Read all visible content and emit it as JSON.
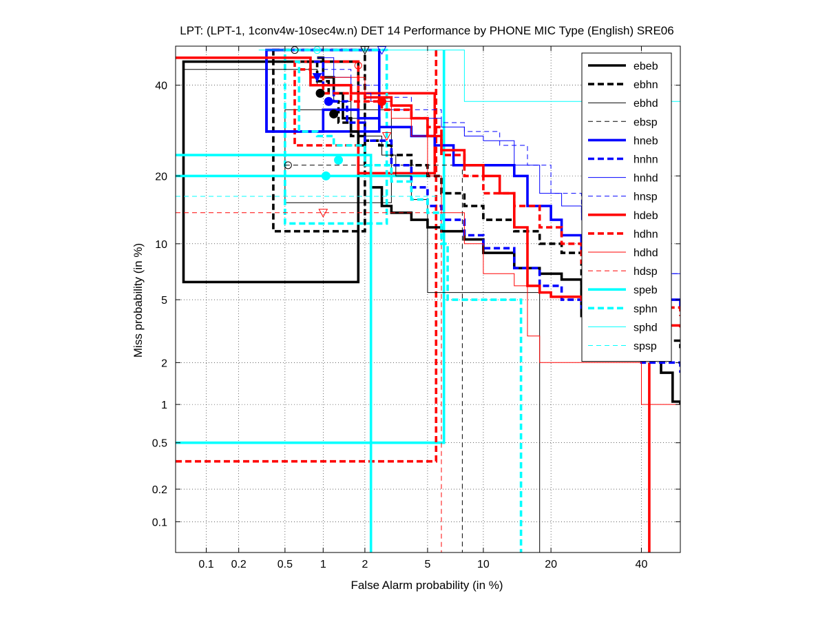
{
  "chart_data": {
    "type": "line",
    "title": "LPT: (LPT-1, 1conv4w-10sec4w.n) DET 14 Performance by PHONE MIC Type (English) SRE06",
    "xlabel": "False Alarm probability (in %)",
    "ylabel": "Miss probability (in %)",
    "scale": "normal-deviate (probit) on both axes",
    "xlim": [
      0.05,
      50
    ],
    "ylim": [
      0.05,
      50
    ],
    "grid": "dotted",
    "legend_position": "top-right",
    "x_ticks": [
      "0.1",
      "0.2",
      "0.5",
      "1",
      "2",
      "5",
      "10",
      "20",
      "40"
    ],
    "x_tick_values": [
      0.1,
      0.2,
      0.5,
      1,
      2,
      5,
      10,
      20,
      40
    ],
    "y_ticks": [
      "0.1",
      "0.2",
      "0.5",
      "1",
      "2",
      "5",
      "10",
      "20",
      "40"
    ],
    "y_tick_values": [
      0.1,
      0.2,
      0.5,
      1,
      2,
      5,
      10,
      20,
      40
    ],
    "series": [
      {
        "name": "ebeb",
        "color": "#000000",
        "style": "solid",
        "weight": "thick",
        "points": [
          [
            0.9,
            47
          ],
          [
            1.0,
            42
          ],
          [
            1.2,
            38
          ],
          [
            1.4,
            32
          ],
          [
            1.6,
            29
          ],
          [
            1.8,
            26
          ],
          [
            2.0,
            22
          ],
          [
            2.2,
            18
          ],
          [
            2.6,
            15
          ],
          [
            3.0,
            14
          ],
          [
            4.0,
            13
          ],
          [
            5.0,
            12
          ],
          [
            6.0,
            11.5
          ],
          [
            8.0,
            10.5
          ],
          [
            10,
            9
          ],
          [
            14,
            7.5
          ],
          [
            18,
            7
          ],
          [
            22,
            6.5
          ],
          [
            26,
            4
          ],
          [
            30,
            3
          ],
          [
            40,
            2.4
          ],
          [
            45,
            1.7
          ],
          [
            48,
            1.05
          ],
          [
            50,
            1.0
          ]
        ],
        "ci": {
          "xlo": 0.06,
          "xhi": 1.8,
          "ylo": 6.3,
          "yhi": 46
        }
      },
      {
        "name": "ebhn",
        "color": "#000000",
        "style": "dashed",
        "weight": "thick",
        "points": [
          [
            0.75,
            46
          ],
          [
            0.9,
            41
          ],
          [
            1.1,
            36
          ],
          [
            1.3,
            31
          ],
          [
            1.6,
            28
          ],
          [
            2.0,
            27
          ],
          [
            2.5,
            26
          ],
          [
            3.0,
            24
          ],
          [
            4.0,
            22
          ],
          [
            5.0,
            20
          ],
          [
            6.0,
            17
          ],
          [
            8.0,
            15
          ],
          [
            10,
            13
          ],
          [
            14,
            11.5
          ],
          [
            18,
            10
          ],
          [
            22,
            9
          ],
          [
            26,
            4.5
          ],
          [
            30,
            3.5
          ],
          [
            40,
            2.8
          ],
          [
            50,
            2.5
          ]
        ],
        "ci": {
          "xlo": 0.4,
          "xhi": 2.0,
          "ylo": 11.5,
          "yhi": 49
        }
      },
      {
        "name": "ebhd",
        "color": "#000000",
        "style": "solid",
        "weight": "thin",
        "points": [
          [
            0.06,
            44
          ],
          [
            0.5,
            44
          ],
          [
            0.9,
            40
          ],
          [
            1.2,
            36
          ],
          [
            1.6,
            32
          ],
          [
            2.0,
            28
          ],
          [
            2.6,
            24
          ],
          [
            3.2,
            20
          ],
          [
            4.0,
            16
          ],
          [
            5.0,
            5.5
          ],
          [
            8.0,
            5.5
          ],
          [
            18,
            5.5
          ],
          [
            18,
            0.05
          ]
        ],
        "ci": {
          "xlo": 0.5,
          "xhi": 3.0,
          "ylo": 15.5,
          "yhi": 34
        }
      },
      {
        "name": "ebsp",
        "color": "#000000",
        "style": "dashed",
        "weight": "thin",
        "points": [
          [
            0.5,
            22
          ],
          [
            1.0,
            22
          ],
          [
            2.0,
            22
          ],
          [
            3.0,
            22
          ],
          [
            6.0,
            22
          ],
          [
            7.8,
            22
          ],
          [
            7.8,
            0.05
          ]
        ]
      },
      {
        "name": "hneb",
        "color": "#0000ff",
        "style": "solid",
        "weight": "thick",
        "points": [
          [
            0.35,
            47
          ],
          [
            0.35,
            29
          ],
          [
            0.9,
            29
          ],
          [
            1.0,
            34
          ],
          [
            1.4,
            34
          ],
          [
            1.8,
            32
          ],
          [
            2.5,
            30
          ],
          [
            4.0,
            28
          ],
          [
            5.5,
            26
          ],
          [
            7.0,
            22
          ],
          [
            10,
            22
          ],
          [
            14,
            20
          ],
          [
            16,
            15
          ],
          [
            20,
            13
          ],
          [
            22,
            11
          ],
          [
            26,
            9
          ],
          [
            30,
            8.5
          ],
          [
            40,
            5
          ],
          [
            50,
            4.5
          ]
        ],
        "ci": {
          "xlo": 0.35,
          "xhi": 2.5,
          "ylo": 29,
          "yhi": 49
        }
      },
      {
        "name": "hnhn",
        "color": "#0000ff",
        "style": "dashed",
        "weight": "thick",
        "points": [
          [
            0.85,
            46
          ],
          [
            1.0,
            40
          ],
          [
            1.2,
            36
          ],
          [
            1.5,
            31
          ],
          [
            2.0,
            27
          ],
          [
            3.0,
            22
          ],
          [
            4.0,
            18
          ],
          [
            5.0,
            15
          ],
          [
            6.0,
            13
          ],
          [
            8.0,
            11
          ],
          [
            10,
            9.5
          ],
          [
            14,
            7.5
          ],
          [
            18,
            6
          ],
          [
            22,
            5
          ],
          [
            26,
            4.5
          ],
          [
            30,
            3.5
          ],
          [
            40,
            2.0
          ],
          [
            50,
            1.7
          ]
        ]
      },
      {
        "name": "hnhd",
        "color": "#0000ff",
        "style": "solid",
        "weight": "thin",
        "points": [
          [
            0.9,
            47
          ],
          [
            1.2,
            42
          ],
          [
            1.6,
            38
          ],
          [
            2.2,
            36
          ],
          [
            3.0,
            34
          ],
          [
            4.0,
            32
          ],
          [
            6.0,
            30
          ],
          [
            8.0,
            28
          ],
          [
            10,
            27
          ],
          [
            14,
            22
          ],
          [
            18,
            17
          ],
          [
            22,
            15
          ],
          [
            26,
            13
          ],
          [
            30,
            11
          ],
          [
            40,
            7
          ],
          [
            50,
            6
          ]
        ]
      },
      {
        "name": "hnsp",
        "color": "#0000ff",
        "style": "dashed",
        "weight": "thin",
        "points": [
          [
            1.0,
            44
          ],
          [
            1.6,
            40
          ],
          [
            2.5,
            37
          ],
          [
            4.0,
            34
          ],
          [
            6.0,
            31
          ],
          [
            8.0,
            29
          ],
          [
            12,
            26
          ],
          [
            16,
            22
          ],
          [
            20,
            17
          ],
          [
            26,
            14
          ],
          [
            34,
            10
          ],
          [
            40,
            7
          ],
          [
            50,
            6
          ]
        ]
      },
      {
        "name": "hdeb",
        "color": "#ff0000",
        "style": "solid",
        "weight": "thick",
        "points": [
          [
            0.05,
            47
          ],
          [
            0.8,
            47
          ],
          [
            0.8,
            40
          ],
          [
            1.2,
            40
          ],
          [
            1.6,
            38
          ],
          [
            2.0,
            37
          ],
          [
            3.0,
            35
          ],
          [
            4.0,
            32
          ],
          [
            5.0,
            28
          ],
          [
            6.0,
            25
          ],
          [
            8.0,
            22
          ],
          [
            10,
            20
          ],
          [
            12,
            17
          ],
          [
            14,
            12
          ],
          [
            16,
            6
          ],
          [
            18,
            5.5
          ],
          [
            20,
            5.2
          ],
          [
            26,
            5
          ],
          [
            30,
            4
          ],
          [
            40,
            3.5
          ],
          [
            50,
            3.4
          ]
        ],
        "ci": {
          "xlo": 1.8,
          "xhi": 5.5,
          "ylo": 20.5,
          "yhi": 38
        }
      },
      {
        "name": "hdhn",
        "color": "#ff0000",
        "style": "dashed",
        "weight": "thick",
        "points": [
          [
            0.65,
            44
          ],
          [
            0.8,
            42
          ],
          [
            1.0,
            38
          ],
          [
            1.6,
            36
          ],
          [
            2.6,
            34
          ],
          [
            4.0,
            32
          ],
          [
            5.0,
            30
          ],
          [
            6.0,
            24
          ],
          [
            8.0,
            20
          ],
          [
            10,
            17
          ],
          [
            14,
            15
          ],
          [
            18,
            12
          ],
          [
            22,
            10
          ],
          [
            26,
            8
          ],
          [
            34,
            6
          ],
          [
            40,
            4.5
          ],
          [
            50,
            4.0
          ]
        ],
        "ci": {
          "xlo": 0.6,
          "xhi": 1.8,
          "ylo": 26,
          "yhi": 46
        }
      },
      {
        "name": "hdhd",
        "color": "#ff0000",
        "style": "solid",
        "weight": "thin",
        "points": [
          [
            1.0,
            42
          ],
          [
            2.0,
            36
          ],
          [
            3.0,
            32
          ],
          [
            4.0,
            28
          ],
          [
            5.0,
            20
          ],
          [
            6.0,
            14
          ],
          [
            8.0,
            10
          ],
          [
            10,
            7
          ],
          [
            14,
            6
          ],
          [
            16,
            3
          ],
          [
            18,
            2.0
          ],
          [
            30,
            2.0
          ],
          [
            40,
            1.0
          ],
          [
            50,
            1.0
          ]
        ]
      },
      {
        "name": "hdsp",
        "color": "#ff0000",
        "style": "dashed",
        "weight": "thin",
        "points": [
          [
            0.05,
            14
          ],
          [
            1.0,
            14
          ],
          [
            2.0,
            14
          ],
          [
            4.0,
            14
          ],
          [
            6.0,
            14
          ],
          [
            6.0,
            0.05
          ]
        ]
      },
      {
        "name": "speb",
        "color": "#00ffff",
        "style": "solid",
        "weight": "thick",
        "points": [
          [
            0.05,
            24
          ],
          [
            1.0,
            24
          ],
          [
            2.0,
            24
          ],
          [
            2.2,
            24
          ],
          [
            2.2,
            0.05
          ]
        ]
      },
      {
        "name": "sphn",
        "color": "#00ffff",
        "style": "dashed",
        "weight": "thick",
        "points": [
          [
            0.6,
            46
          ],
          [
            0.65,
            29
          ],
          [
            0.9,
            28
          ],
          [
            1.2,
            26
          ],
          [
            2.0,
            22
          ],
          [
            3.0,
            19
          ],
          [
            4.0,
            16
          ],
          [
            5.0,
            14
          ],
          [
            6.0,
            10
          ],
          [
            6.5,
            10
          ],
          [
            6.5,
            5
          ],
          [
            15,
            5
          ],
          [
            15,
            0.05
          ]
        ],
        "ci": {
          "xlo": 0.5,
          "xhi": 2.8,
          "ylo": 12.5,
          "yhi": 49
        }
      },
      {
        "name": "sphd",
        "color": "#00ffff",
        "style": "solid",
        "weight": "thin",
        "points": [
          [
            0.3,
            49
          ],
          [
            6.0,
            49
          ],
          [
            6.0,
            49
          ],
          [
            8.0,
            49
          ],
          [
            8.0,
            36
          ],
          [
            50,
            36
          ],
          [
            50,
            8
          ]
        ]
      },
      {
        "name": "spsp",
        "color": "#00ffff",
        "style": "dashed",
        "weight": "thin",
        "points": [
          [
            0.05,
            16.5
          ],
          [
            1.0,
            16.5
          ],
          [
            4.0,
            16.5
          ],
          [
            6.0,
            16.5
          ],
          [
            6.0,
            16.5
          ]
        ]
      }
    ],
    "extra_ci_lines": [
      {
        "color": "#00ffff",
        "weight": "thick",
        "style": "solid",
        "points": [
          [
            0.05,
            20
          ],
          [
            1.1,
            20
          ],
          [
            5.0,
            20
          ]
        ]
      },
      {
        "color": "#00ffff",
        "weight": "thick",
        "style": "solid",
        "points": [
          [
            0.05,
            0.5
          ],
          [
            6.2,
            0.5
          ],
          [
            6.2,
            49
          ]
        ]
      },
      {
        "color": "#ff0000",
        "weight": "thick",
        "style": "dashed",
        "points": [
          [
            0.05,
            0.35
          ],
          [
            5.6,
            0.35
          ],
          [
            5.6,
            49
          ]
        ]
      },
      {
        "color": "#ff0000",
        "weight": "thick",
        "style": "solid",
        "points": [
          [
            42,
            0.05
          ],
          [
            42,
            2.0
          ]
        ]
      }
    ],
    "markers": [
      {
        "series": "ebeb",
        "x": 0.95,
        "y": 38,
        "shape": "dot",
        "color": "#000000"
      },
      {
        "series": "ebhn",
        "x": 1.2,
        "y": 33,
        "shape": "dot",
        "color": "#000000"
      },
      {
        "series": "hneb",
        "x": 0.9,
        "y": 42,
        "shape": "tri-down-filled",
        "color": "#0000ff"
      },
      {
        "series": "hnhn",
        "x": 1.1,
        "y": 36,
        "shape": "dot",
        "color": "#0000ff"
      },
      {
        "series": "hdeb",
        "x": 2.6,
        "y": 36,
        "shape": "dot",
        "color": "#ff0000"
      },
      {
        "series": "speb",
        "x": 1.05,
        "y": 20,
        "shape": "dot",
        "color": "#00ffff"
      },
      {
        "series": "sphn",
        "x": 1.3,
        "y": 23,
        "shape": "dot",
        "color": "#00ffff"
      },
      {
        "series": "ebhd",
        "x": 0.53,
        "y": 22,
        "shape": "circle-open",
        "color": "#000000"
      },
      {
        "series": "hdsp",
        "x": 1.0,
        "y": 14,
        "shape": "tri-down-open",
        "color": "#ff0000"
      },
      {
        "series": "hdhn",
        "x": 1.8,
        "y": 45,
        "shape": "circle-open",
        "color": "#ff0000"
      },
      {
        "series": "hdhd",
        "x": 2.8,
        "y": 28,
        "shape": "tri-down-open",
        "color": "#ff0000"
      },
      {
        "series": "ebhd",
        "x": 0.6,
        "y": 49,
        "shape": "circle-open",
        "color": "#000000"
      },
      {
        "series": "sphd",
        "x": 0.9,
        "y": 49,
        "shape": "circle-open",
        "color": "#00ffff"
      },
      {
        "series": "ebsp",
        "x": 2.0,
        "y": 49,
        "shape": "tri-down-open",
        "color": "#000000"
      },
      {
        "series": "hnsp",
        "x": 2.6,
        "y": 49,
        "shape": "tri-down-open",
        "color": "#0000ff"
      }
    ]
  }
}
